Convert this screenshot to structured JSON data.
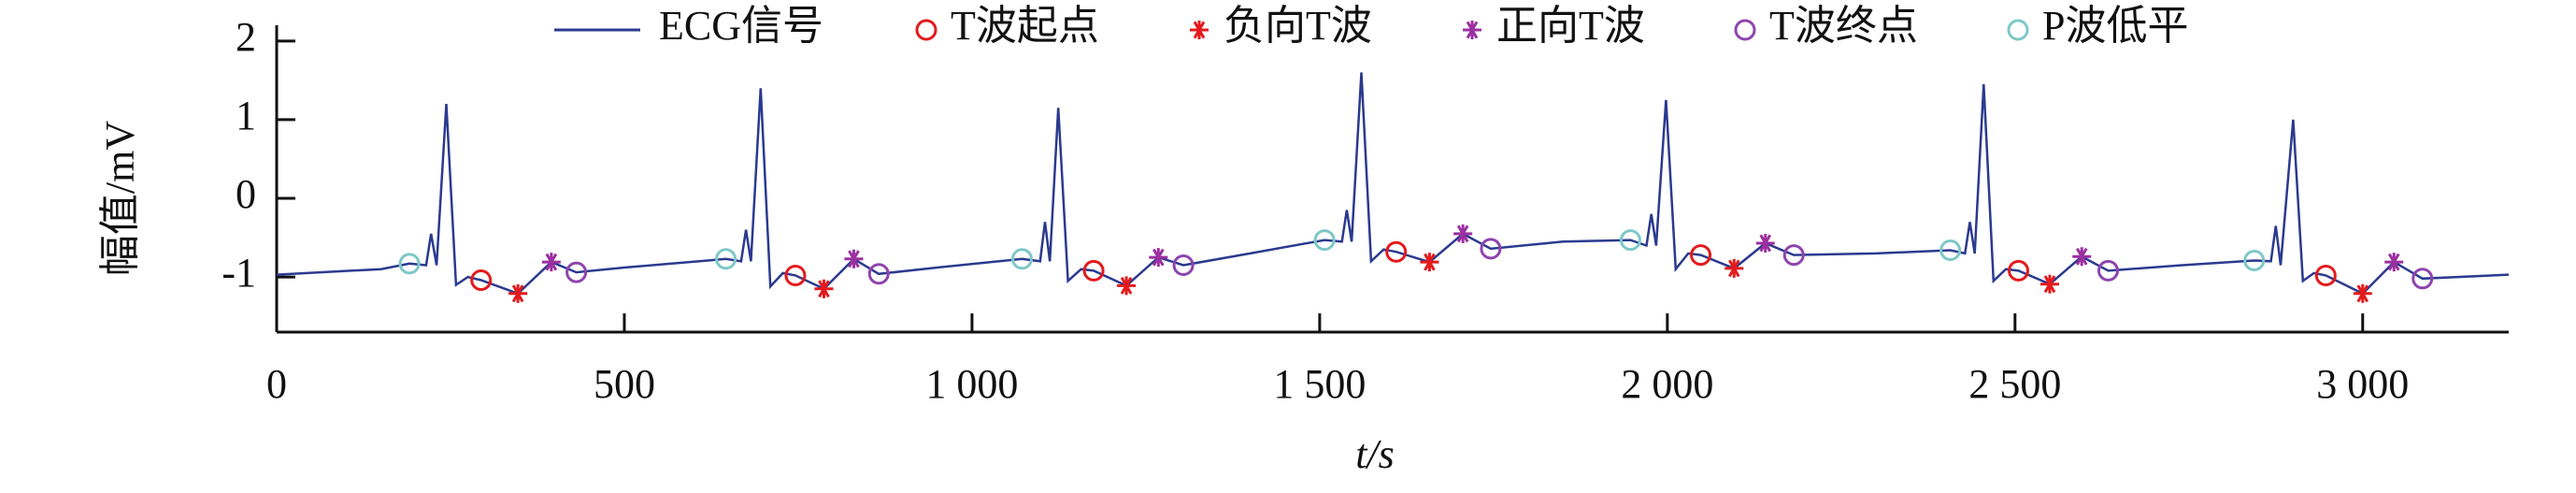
{
  "chart_data": {
    "type": "line",
    "xlabel": "t/s",
    "ylabel": "幅值/mV",
    "xlim": [
      0,
      3210
    ],
    "ylim": [
      -1.7,
      2.2
    ],
    "xticks": [
      0,
      500,
      {
        "value": 1000,
        "label": "1 000"
      },
      {
        "value": 1500,
        "label": "1 500"
      },
      {
        "value": 2000,
        "label": "2 000"
      },
      {
        "value": 2500,
        "label": "2 500"
      },
      {
        "value": 3000,
        "label": "3 000"
      }
    ],
    "yticks": [
      -1,
      0,
      1,
      2
    ],
    "legend": "top",
    "series": [
      {
        "name": "ECG信号",
        "color": "#2b3a8f",
        "marker": "line",
        "x": [
          0,
          150,
          191,
          215,
          222,
          230,
          244,
          258,
          275,
          294,
          347,
          395,
          431,
          500,
          646,
          668,
          675,
          682,
          696,
          710,
          728,
          746,
          787,
          830,
          866,
          950,
          1072,
          1098,
          1105,
          1112,
          1124,
          1138,
          1157,
          1175,
          1222,
          1268,
          1304,
          1400,
          1507,
          1532,
          1539,
          1546,
          1560,
          1574,
          1592,
          1610,
          1658,
          1706,
          1746,
          1850,
          1947,
          1970,
          1977,
          1984,
          1998,
          2012,
          2030,
          2048,
          2096,
          2141,
          2182,
          2300,
          2407,
          2428,
          2435,
          2442,
          2455,
          2469,
          2487,
          2505,
          2550,
          2596,
          2634,
          2740,
          2844,
          2868,
          2875,
          2882,
          2900,
          2914,
          2930,
          2947,
          3000,
          3045,
          3086,
          3210
        ],
        "values": [
          -0.97,
          -0.9,
          -0.83,
          -0.85,
          -0.45,
          -0.85,
          1.2,
          -1.1,
          -1.0,
          -1.04,
          -1.21,
          -0.81,
          -0.94,
          -0.88,
          -0.77,
          -0.8,
          -0.4,
          -0.8,
          1.4,
          -1.12,
          -0.95,
          -0.98,
          -1.15,
          -0.77,
          -0.96,
          -0.88,
          -0.77,
          -0.8,
          -0.3,
          -0.8,
          1.15,
          -1.05,
          -0.9,
          -0.92,
          -1.11,
          -0.75,
          -0.85,
          -0.7,
          -0.53,
          -0.55,
          -0.15,
          -0.55,
          1.6,
          -0.8,
          -0.65,
          -0.68,
          -0.81,
          -0.45,
          -0.64,
          -0.55,
          -0.53,
          -0.6,
          -0.2,
          -0.6,
          1.25,
          -0.9,
          -0.7,
          -0.72,
          -0.89,
          -0.57,
          -0.72,
          -0.7,
          -0.66,
          -0.7,
          -0.3,
          -0.7,
          1.45,
          -1.05,
          -0.9,
          -0.92,
          -1.09,
          -0.74,
          -0.92,
          -0.85,
          -0.79,
          -0.8,
          -0.35,
          -0.85,
          1.0,
          -1.05,
          -0.95,
          -0.98,
          -1.21,
          -0.81,
          -1.02,
          -0.97
        ]
      },
      {
        "name": "T波起点",
        "color": "#e41a1c",
        "marker": "circle",
        "x": [
          294,
          746,
          1175,
          1610,
          2048,
          2505,
          2947
        ],
        "values": [
          -1.04,
          -0.98,
          -0.92,
          -0.68,
          -0.72,
          -0.92,
          -0.98
        ]
      },
      {
        "name": "负向T波",
        "color": "#e41a1c",
        "marker": "asterisk",
        "x": [
          347,
          787,
          1222,
          1658,
          2096,
          2550,
          3000
        ],
        "values": [
          -1.21,
          -1.15,
          -1.11,
          -0.81,
          -0.89,
          -1.09,
          -1.21
        ]
      },
      {
        "name": "正向T波",
        "color": "#9b30a0",
        "marker": "asterisk",
        "x": [
          395,
          830,
          1268,
          1706,
          2141,
          2596,
          3045
        ],
        "values": [
          -0.81,
          -0.77,
          -0.75,
          -0.45,
          -0.57,
          -0.74,
          -0.81
        ]
      },
      {
        "name": "T波终点",
        "color": "#8e44ad",
        "marker": "circle",
        "x": [
          431,
          866,
          1304,
          1746,
          2182,
          2634,
          3086
        ],
        "values": [
          -0.94,
          -0.96,
          -0.85,
          -0.64,
          -0.72,
          -0.92,
          -1.02
        ]
      },
      {
        "name": "P波低平",
        "color": "#7ec8c8",
        "marker": "circle",
        "x": [
          191,
          646,
          1072,
          1507,
          1947,
          2407,
          2844
        ],
        "values": [
          -0.83,
          -0.77,
          -0.77,
          -0.53,
          -0.53,
          -0.66,
          -0.79
        ]
      }
    ]
  }
}
